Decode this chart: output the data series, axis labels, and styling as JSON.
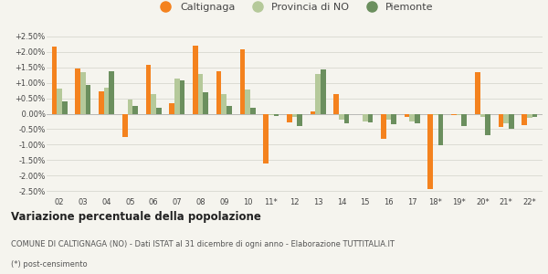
{
  "years": [
    "02",
    "03",
    "04",
    "05",
    "06",
    "07",
    "08",
    "09",
    "10",
    "11*",
    "12",
    "13",
    "14",
    "15",
    "16",
    "17",
    "18*",
    "19*",
    "20*",
    "21*",
    "22*"
  ],
  "caltignaga": [
    2.15,
    1.47,
    0.72,
    -0.75,
    1.57,
    0.33,
    2.2,
    1.37,
    2.08,
    -1.6,
    -0.28,
    0.08,
    0.62,
    0.0,
    -0.8,
    -0.1,
    -2.42,
    -0.05,
    1.35,
    -0.42,
    -0.38
  ],
  "provincia_no": [
    0.82,
    1.35,
    0.85,
    0.45,
    0.62,
    1.13,
    1.27,
    0.62,
    0.78,
    -0.05,
    -0.1,
    1.27,
    -0.2,
    -0.25,
    -0.2,
    -0.25,
    -0.05,
    -0.05,
    -0.1,
    -0.3,
    -0.13
  ],
  "piemonte": [
    0.4,
    0.93,
    1.38,
    0.25,
    0.2,
    1.08,
    0.7,
    0.25,
    0.2,
    -0.08,
    -0.4,
    1.43,
    -0.3,
    -0.28,
    -0.35,
    -0.3,
    -1.02,
    -0.4,
    -0.7,
    -0.5,
    -0.1
  ],
  "color_caltignaga": "#f4821e",
  "color_provincia": "#b5c99a",
  "color_piemonte": "#6b8f5e",
  "background_color": "#f5f4ee",
  "grid_color": "#d8d8d0",
  "ylim": [
    -2.65,
    2.65
  ],
  "yticks": [
    -2.5,
    -2.0,
    -1.5,
    -1.0,
    -0.5,
    0.0,
    0.5,
    1.0,
    1.5,
    2.0,
    2.5
  ],
  "legend_labels": [
    "Caltignaga",
    "Provincia di NO",
    "Piemonte"
  ],
  "title": "Variazione percentuale della popolazione",
  "footnote1": "COMUNE DI CALTIGNAGA (NO) - Dati ISTAT al 31 dicembre di ogni anno - Elaborazione TUTTITALIA.IT",
  "footnote2": "(*) post-censimento",
  "bar_width": 0.22
}
